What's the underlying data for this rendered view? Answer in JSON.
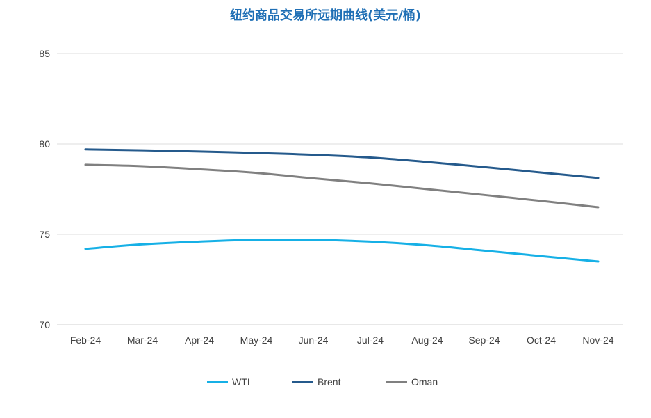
{
  "chart_data": {
    "type": "line",
    "title": "纽约商品交易所远期曲线(美元/桶)",
    "categories": [
      "Feb-24",
      "Mar-24",
      "Apr-24",
      "May-24",
      "Jun-24",
      "Jul-24",
      "Aug-24",
      "Sep-24",
      "Oct-24",
      "Nov-24"
    ],
    "ylim": [
      70,
      85
    ],
    "yticks": [
      70,
      75,
      80,
      85
    ],
    "grid": true,
    "legend_position": "bottom",
    "series": [
      {
        "name": "WTI",
        "color": "#16b0e6",
        "values": [
          74.2,
          74.45,
          74.6,
          74.7,
          74.7,
          74.6,
          74.4,
          74.1,
          73.8,
          73.5
        ]
      },
      {
        "name": "Brent",
        "color": "#255a8c",
        "values": [
          79.7,
          79.65,
          79.58,
          79.5,
          79.4,
          79.25,
          79.0,
          78.72,
          78.42,
          78.12
        ]
      },
      {
        "name": "Oman",
        "color": "#808080",
        "values": [
          78.85,
          78.77,
          78.6,
          78.4,
          78.1,
          77.82,
          77.5,
          77.18,
          76.85,
          76.5
        ]
      }
    ]
  }
}
